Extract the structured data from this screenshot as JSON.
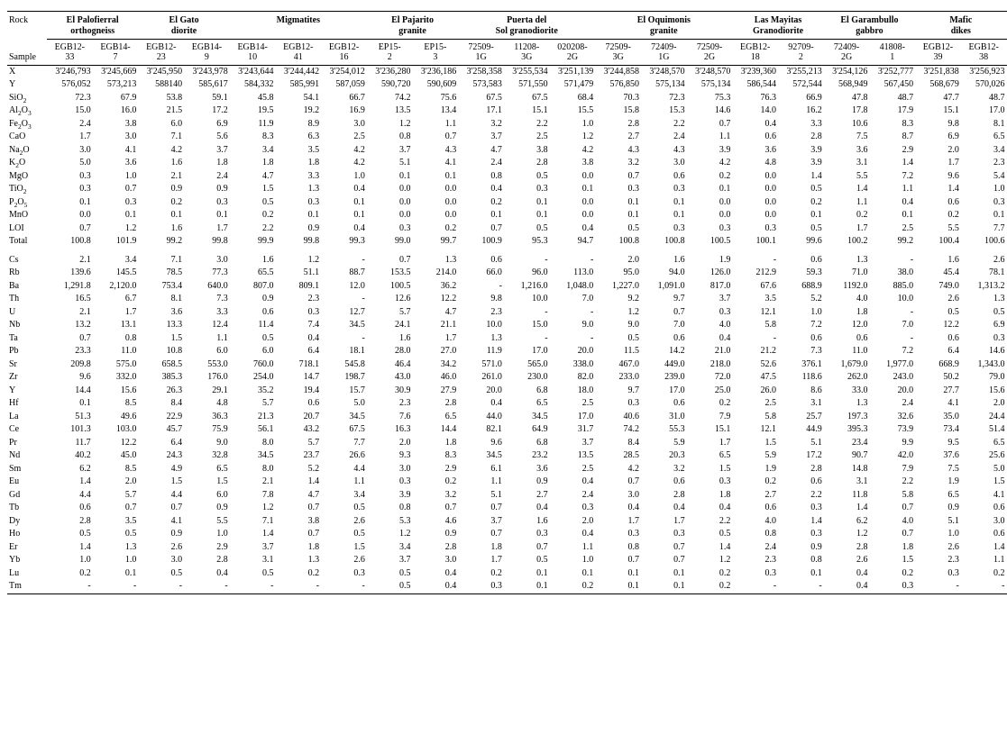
{
  "headers": {
    "rockLabel": "Rock",
    "sampleLabel": "Sample",
    "groups": [
      {
        "name": "El Palofierral orthogneiss",
        "span": 2
      },
      {
        "name": "El Gato diorite",
        "span": 2
      },
      {
        "name": "Migmatites",
        "span": 3
      },
      {
        "name": "El Pajarito granite",
        "span": 2
      },
      {
        "name": "Puerta del Sol granodiorite",
        "span": 3
      },
      {
        "name": "El Oquimonis granite",
        "span": 3
      },
      {
        "name": "Las Mayitas Granodiorite",
        "span": 2
      },
      {
        "name": "El Garambullo gabbro",
        "span": 2
      },
      {
        "name": "Mafic dikes",
        "span": 2
      }
    ],
    "samples": [
      "EGB12-33",
      "EGB14-7",
      "EGB12-23",
      "EGB14-9",
      "EGB14-10",
      "EGB12-41",
      "EGB12-16",
      "EP15-2",
      "EP15-3",
      "72509-1G",
      "11208-3G",
      "020208-2G",
      "72509-3G",
      "72409-1G",
      "72509-2G",
      "EGB12-18",
      "92709-2",
      "72409-2G",
      "41808-1",
      "EGB12-39",
      "EGB12-38"
    ]
  },
  "section1": [
    {
      "label": "X",
      "vals": [
        "3'246,793",
        "3'245,669",
        "3'245,950",
        "3'243,978",
        "3'243,644",
        "3'244,442",
        "3'254,012",
        "3'236,280",
        "3'236,186",
        "3'258,358",
        "3'255,534",
        "3'251,139",
        "3'244,858",
        "3'248,570",
        "3'248,570",
        "3'239,360",
        "3'255,213",
        "3'254,126",
        "3'252,777",
        "3'251,838",
        "3'256,923"
      ]
    },
    {
      "label": "Y",
      "vals": [
        "576,052",
        "573,213",
        "588140",
        "585,617",
        "584,332",
        "585,991",
        "587,059",
        "590,720",
        "590,609",
        "573,583",
        "571,550",
        "571,479",
        "576,850",
        "575,134",
        "575,134",
        "586,544",
        "572,544",
        "568,949",
        "567,450",
        "568,679",
        "570,026"
      ]
    },
    {
      "label": "SiO<sub>2</sub>",
      "vals": [
        "72.3",
        "67.9",
        "53.8",
        "59.1",
        "45.8",
        "54.1",
        "66.7",
        "74.2",
        "75.6",
        "67.5",
        "67.5",
        "68.4",
        "70.3",
        "72.3",
        "75.3",
        "76.3",
        "66.9",
        "47.8",
        "48.7",
        "47.7",
        "48.7"
      ]
    },
    {
      "label": "Al<sub>2</sub>O<sub>3</sub>",
      "vals": [
        "15.0",
        "16.0",
        "21.5",
        "17.2",
        "19.5",
        "19.2",
        "16.9",
        "13.5",
        "13.4",
        "17.1",
        "15.1",
        "15.5",
        "15.8",
        "15.3",
        "14.6",
        "14.0",
        "16.2",
        "17.8",
        "17.9",
        "15.1",
        "17.0"
      ]
    },
    {
      "label": "Fe<sub>2</sub>O<sub>3</sub>",
      "vals": [
        "2.4",
        "3.8",
        "6.0",
        "6.9",
        "11.9",
        "8.9",
        "3.0",
        "1.2",
        "1.1",
        "3.2",
        "2.2",
        "1.0",
        "2.8",
        "2.2",
        "0.7",
        "0.4",
        "3.3",
        "10.6",
        "8.3",
        "9.8",
        "8.1"
      ]
    },
    {
      "label": "CaO",
      "vals": [
        "1.7",
        "3.0",
        "7.1",
        "5.6",
        "8.3",
        "6.3",
        "2.5",
        "0.8",
        "0.7",
        "3.7",
        "2.5",
        "1.2",
        "2.7",
        "2.4",
        "1.1",
        "0.6",
        "2.8",
        "7.5",
        "8.7",
        "6.9",
        "6.5"
      ]
    },
    {
      "label": "Na<sub>2</sub>O",
      "vals": [
        "3.0",
        "4.1",
        "4.2",
        "3.7",
        "3.4",
        "3.5",
        "4.2",
        "3.7",
        "4.3",
        "4.7",
        "3.8",
        "4.2",
        "4.3",
        "4.3",
        "3.9",
        "3.6",
        "3.9",
        "3.6",
        "2.9",
        "2.0",
        "3.4"
      ]
    },
    {
      "label": "K<sub>2</sub>O",
      "vals": [
        "5.0",
        "3.6",
        "1.6",
        "1.8",
        "1.8",
        "1.8",
        "4.2",
        "5.1",
        "4.1",
        "2.4",
        "2.8",
        "3.8",
        "3.2",
        "3.0",
        "4.2",
        "4.8",
        "3.9",
        "3.1",
        "1.4",
        "1.7",
        "2.3"
      ]
    },
    {
      "label": "MgO",
      "vals": [
        "0.3",
        "1.0",
        "2.1",
        "2.4",
        "4.7",
        "3.3",
        "1.0",
        "0.1",
        "0.1",
        "0.8",
        "0.5",
        "0.0",
        "0.7",
        "0.6",
        "0.2",
        "0.0",
        "1.4",
        "5.5",
        "7.2",
        "9.6",
        "5.4"
      ]
    },
    {
      "label": "TiO<sub>2</sub>",
      "vals": [
        "0.3",
        "0.7",
        "0.9",
        "0.9",
        "1.5",
        "1.3",
        "0.4",
        "0.0",
        "0.0",
        "0.4",
        "0.3",
        "0.1",
        "0.3",
        "0.3",
        "0.1",
        "0.0",
        "0.5",
        "1.4",
        "1.1",
        "1.4",
        "1.0"
      ]
    },
    {
      "label": "P<sub>2</sub>O<sub>5</sub>",
      "vals": [
        "0.1",
        "0.3",
        "0.2",
        "0.3",
        "0.5",
        "0.3",
        "0.1",
        "0.0",
        "0.0",
        "0.2",
        "0.1",
        "0.0",
        "0.1",
        "0.1",
        "0.0",
        "0.0",
        "0.2",
        "1.1",
        "0.4",
        "0.6",
        "0.3"
      ]
    },
    {
      "label": "MnO",
      "vals": [
        "0.0",
        "0.1",
        "0.1",
        "0.1",
        "0.2",
        "0.1",
        "0.1",
        "0.0",
        "0.0",
        "0.1",
        "0.1",
        "0.0",
        "0.1",
        "0.1",
        "0.0",
        "0.0",
        "0.1",
        "0.2",
        "0.1",
        "0.2",
        "0.1"
      ]
    },
    {
      "label": "LOI",
      "vals": [
        "0.7",
        "1.2",
        "1.6",
        "1.7",
        "2.2",
        "0.9",
        "0.4",
        "0.3",
        "0.2",
        "0.7",
        "0.5",
        "0.4",
        "0.5",
        "0.3",
        "0.3",
        "0.3",
        "0.5",
        "1.7",
        "2.5",
        "5.5",
        "7.7"
      ]
    },
    {
      "label": "Total",
      "vals": [
        "100.8",
        "101.9",
        "99.2",
        "99.8",
        "99.9",
        "99.8",
        "99.3",
        "99.0",
        "99.7",
        "100.9",
        "95.3",
        "94.7",
        "100.8",
        "100.8",
        "100.5",
        "100.1",
        "99.6",
        "100.2",
        "99.2",
        "100.4",
        "100.6"
      ]
    }
  ],
  "section2": [
    {
      "label": "Cs",
      "vals": [
        "2.1",
        "3.4",
        "7.1",
        "3.0",
        "1.6",
        "1.2",
        "-",
        "0.7",
        "1.3",
        "0.6",
        "-",
        "-",
        "2.0",
        "1.6",
        "1.9",
        "-",
        "0.6",
        "1.3",
        "-",
        "1.6",
        "2.6"
      ]
    },
    {
      "label": "Rb",
      "vals": [
        "139.6",
        "145.5",
        "78.5",
        "77.3",
        "65.5",
        "51.1",
        "88.7",
        "153.5",
        "214.0",
        "66.0",
        "96.0",
        "113.0",
        "95.0",
        "94.0",
        "126.0",
        "212.9",
        "59.3",
        "71.0",
        "38.0",
        "45.4",
        "78.1"
      ]
    },
    {
      "label": "Ba",
      "vals": [
        "1,291.8",
        "2,120.0",
        "753.4",
        "640.0",
        "807.0",
        "809.1",
        "12.0",
        "100.5",
        "36.2",
        "-",
        "1,216.0",
        "1,048.0",
        "1,227.0",
        "1,091.0",
        "817.0",
        "67.6",
        "688.9",
        "1192.0",
        "885.0",
        "749.0",
        "1,313.2"
      ]
    },
    {
      "label": "Th",
      "vals": [
        "16.5",
        "6.7",
        "8.1",
        "7.3",
        "0.9",
        "2.3",
        "-",
        "12.6",
        "12.2",
        "9.8",
        "10.0",
        "7.0",
        "9.2",
        "9.7",
        "3.7",
        "3.5",
        "5.2",
        "4.0",
        "10.0",
        "2.6",
        "1.3"
      ]
    },
    {
      "label": "U",
      "vals": [
        "2.1",
        "1.7",
        "3.6",
        "3.3",
        "0.6",
        "0.3",
        "12.7",
        "5.7",
        "4.7",
        "2.3",
        "-",
        "-",
        "1.2",
        "0.7",
        "0.3",
        "12.1",
        "1.0",
        "1.8",
        "-",
        "0.5",
        "0.5"
      ]
    },
    {
      "label": "Nb",
      "vals": [
        "13.2",
        "13.1",
        "13.3",
        "12.4",
        "11.4",
        "7.4",
        "34.5",
        "24.1",
        "21.1",
        "10.0",
        "15.0",
        "9.0",
        "9.0",
        "7.0",
        "4.0",
        "5.8",
        "7.2",
        "12.0",
        "7.0",
        "12.2",
        "6.9"
      ]
    },
    {
      "label": "Ta",
      "vals": [
        "0.7",
        "0.8",
        "1.5",
        "1.1",
        "0.5",
        "0.4",
        "-",
        "1.6",
        "1.7",
        "1.3",
        "-",
        "-",
        "0.5",
        "0.6",
        "0.4",
        "-",
        "0.6",
        "0.6",
        "-",
        "0.6",
        "0.3"
      ]
    },
    {
      "label": "Pb",
      "vals": [
        "23.3",
        "11.0",
        "10.8",
        "6.0",
        "6.0",
        "6.4",
        "18.1",
        "28.0",
        "27.0",
        "11.9",
        "17.0",
        "20.0",
        "11.5",
        "14.2",
        "21.0",
        "21.2",
        "7.3",
        "11.0",
        "7.2",
        "6.4",
        "14.6"
      ]
    },
    {
      "label": "Sr",
      "vals": [
        "209.8",
        "575.0",
        "658.5",
        "553.0",
        "760.0",
        "718.1",
        "545.8",
        "46.4",
        "34.2",
        "571.0",
        "565.0",
        "338.0",
        "467.0",
        "449.0",
        "218.0",
        "52.6",
        "376.1",
        "1,679.0",
        "1,977.0",
        "668.9",
        "1,343.0"
      ]
    },
    {
      "label": "Zr",
      "vals": [
        "9.6",
        "332.0",
        "385.3",
        "176.0",
        "254.0",
        "14.7",
        "198.7",
        "43.0",
        "46.0",
        "261.0",
        "230.0",
        "82.0",
        "233.0",
        "239.0",
        "72.0",
        "47.5",
        "118.6",
        "262.0",
        "243.0",
        "50.2",
        "79.0"
      ]
    },
    {
      "label": "Y",
      "vals": [
        "14.4",
        "15.6",
        "26.3",
        "29.1",
        "35.2",
        "19.4",
        "15.7",
        "30.9",
        "27.9",
        "20.0",
        "6.8",
        "18.0",
        "9.7",
        "17.0",
        "25.0",
        "26.0",
        "8.6",
        "33.0",
        "20.0",
        "27.7",
        "15.6"
      ]
    },
    {
      "label": "Hf",
      "vals": [
        "0.1",
        "8.5",
        "8.4",
        "4.8",
        "5.7",
        "0.6",
        "5.0",
        "2.3",
        "2.8",
        "0.4",
        "6.5",
        "2.5",
        "0.3",
        "0.6",
        "0.2",
        "2.5",
        "3.1",
        "1.3",
        "2.4",
        "4.1",
        "2.0"
      ]
    },
    {
      "label": "La",
      "vals": [
        "51.3",
        "49.6",
        "22.9",
        "36.3",
        "21.3",
        "20.7",
        "34.5",
        "7.6",
        "6.5",
        "44.0",
        "34.5",
        "17.0",
        "40.6",
        "31.0",
        "7.9",
        "5.8",
        "25.7",
        "197.3",
        "32.6",
        "35.0",
        "24.4"
      ]
    },
    {
      "label": "Ce",
      "vals": [
        "101.3",
        "103.0",
        "45.7",
        "75.9",
        "56.1",
        "43.2",
        "67.5",
        "16.3",
        "14.4",
        "82.1",
        "64.9",
        "31.7",
        "74.2",
        "55.3",
        "15.1",
        "12.1",
        "44.9",
        "395.3",
        "73.9",
        "73.4",
        "51.4"
      ]
    },
    {
      "label": "Pr",
      "vals": [
        "11.7",
        "12.2",
        "6.4",
        "9.0",
        "8.0",
        "5.7",
        "7.7",
        "2.0",
        "1.8",
        "9.6",
        "6.8",
        "3.7",
        "8.4",
        "5.9",
        "1.7",
        "1.5",
        "5.1",
        "23.4",
        "9.9",
        "9.5",
        "6.5"
      ]
    },
    {
      "label": "Nd",
      "vals": [
        "40.2",
        "45.0",
        "24.3",
        "32.8",
        "34.5",
        "23.7",
        "26.6",
        "9.3",
        "8.3",
        "34.5",
        "23.2",
        "13.5",
        "28.5",
        "20.3",
        "6.5",
        "5.9",
        "17.2",
        "90.7",
        "42.0",
        "37.6",
        "25.6"
      ]
    },
    {
      "label": "Sm",
      "vals": [
        "6.2",
        "8.5",
        "4.9",
        "6.5",
        "8.0",
        "5.2",
        "4.4",
        "3.0",
        "2.9",
        "6.1",
        "3.6",
        "2.5",
        "4.2",
        "3.2",
        "1.5",
        "1.9",
        "2.8",
        "14.8",
        "7.9",
        "7.5",
        "5.0"
      ]
    },
    {
      "label": "Eu",
      "vals": [
        "1.4",
        "2.0",
        "1.5",
        "1.5",
        "2.1",
        "1.4",
        "1.1",
        "0.3",
        "0.2",
        "1.1",
        "0.9",
        "0.4",
        "0.7",
        "0.6",
        "0.3",
        "0.2",
        "0.6",
        "3.1",
        "2.2",
        "1.9",
        "1.5"
      ]
    },
    {
      "label": "Gd",
      "vals": [
        "4.4",
        "5.7",
        "4.4",
        "6.0",
        "7.8",
        "4.7",
        "3.4",
        "3.9",
        "3.2",
        "5.1",
        "2.7",
        "2.4",
        "3.0",
        "2.8",
        "1.8",
        "2.7",
        "2.2",
        "11.8",
        "5.8",
        "6.5",
        "4.1"
      ]
    },
    {
      "label": "Tb",
      "vals": [
        "0.6",
        "0.7",
        "0.7",
        "0.9",
        "1.2",
        "0.7",
        "0.5",
        "0.8",
        "0.7",
        "0.7",
        "0.4",
        "0.3",
        "0.4",
        "0.4",
        "0.4",
        "0.6",
        "0.3",
        "1.4",
        "0.7",
        "0.9",
        "0.6"
      ]
    },
    {
      "label": "Dy",
      "vals": [
        "2.8",
        "3.5",
        "4.1",
        "5.5",
        "7.1",
        "3.8",
        "2.6",
        "5.3",
        "4.6",
        "3.7",
        "1.6",
        "2.0",
        "1.7",
        "1.7",
        "2.2",
        "4.0",
        "1.4",
        "6.2",
        "4.0",
        "5.1",
        "3.0"
      ]
    },
    {
      "label": "Ho",
      "vals": [
        "0.5",
        "0.5",
        "0.9",
        "1.0",
        "1.4",
        "0.7",
        "0.5",
        "1.2",
        "0.9",
        "0.7",
        "0.3",
        "0.4",
        "0.3",
        "0.3",
        "0.5",
        "0.8",
        "0.3",
        "1.2",
        "0.7",
        "1.0",
        "0.6"
      ]
    },
    {
      "label": "Er",
      "vals": [
        "1.4",
        "1.3",
        "2.6",
        "2.9",
        "3.7",
        "1.8",
        "1.5",
        "3.4",
        "2.8",
        "1.8",
        "0.7",
        "1.1",
        "0.8",
        "0.7",
        "1.4",
        "2.4",
        "0.9",
        "2.8",
        "1.8",
        "2.6",
        "1.4"
      ]
    },
    {
      "label": "Yb",
      "vals": [
        "1.0",
        "1.0",
        "3.0",
        "2.8",
        "3.1",
        "1.3",
        "2.6",
        "3.7",
        "3.0",
        "1.7",
        "0.5",
        "1.0",
        "0.7",
        "0.7",
        "1.2",
        "2.3",
        "0.8",
        "2.6",
        "1.5",
        "2.3",
        "1.1"
      ]
    },
    {
      "label": "Lu",
      "vals": [
        "0.2",
        "0.1",
        "0.5",
        "0.4",
        "0.5",
        "0.2",
        "0.3",
        "0.5",
        "0.4",
        "0.2",
        "0.1",
        "0.1",
        "0.1",
        "0.1",
        "0.2",
        "0.3",
        "0.1",
        "0.4",
        "0.2",
        "0.3",
        "0.2"
      ]
    },
    {
      "label": "Tm",
      "vals": [
        "-",
        "-",
        "-",
        "-",
        "-",
        "-",
        "-",
        "0.5",
        "0.4",
        "0.3",
        "0.1",
        "0.2",
        "0.1",
        "0.1",
        "0.2",
        "-",
        "-",
        "0.4",
        "0.3",
        "-",
        "-"
      ]
    }
  ]
}
